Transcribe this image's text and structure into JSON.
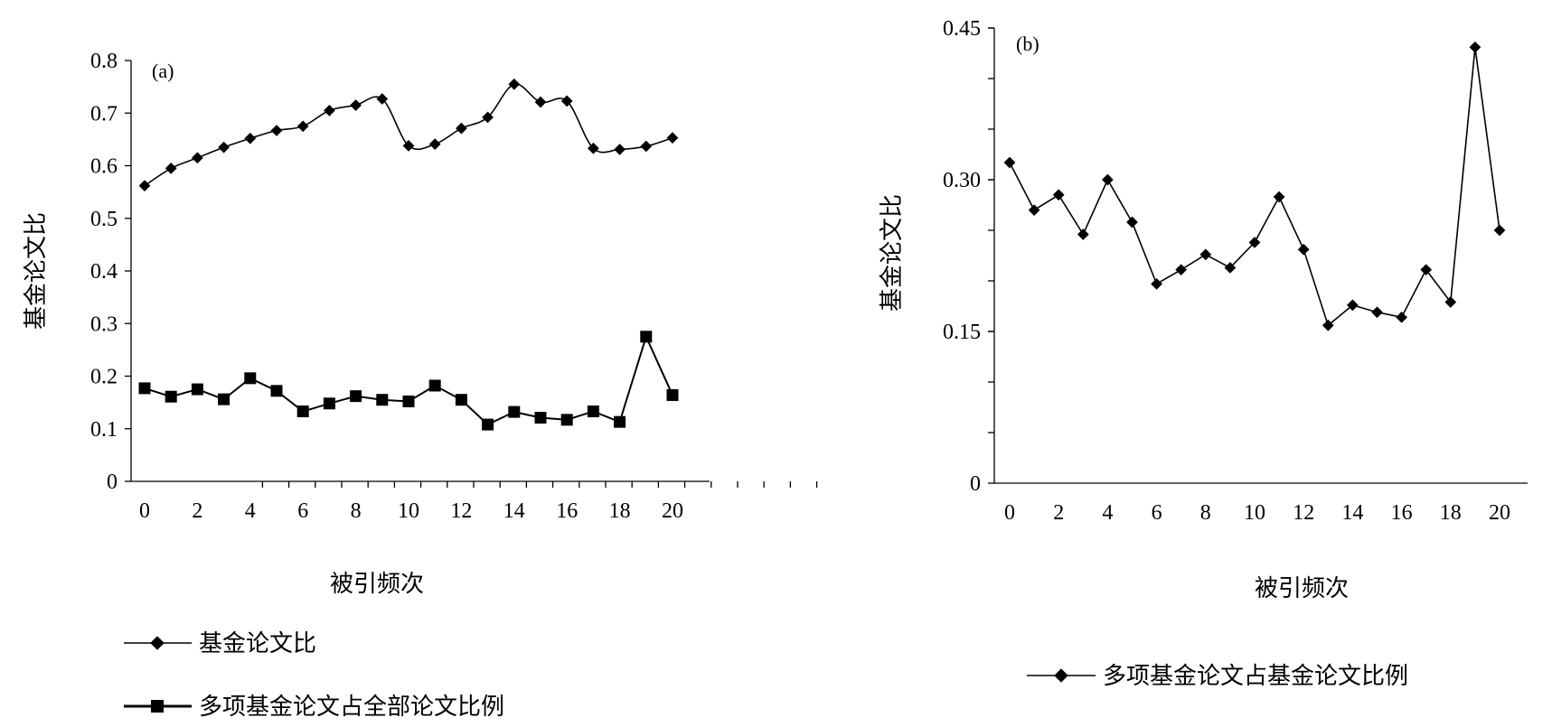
{
  "chart_data": [
    {
      "type": "line",
      "panel_label": "(a)",
      "xlabel": "被引频次",
      "ylabel": "基金论文比",
      "xlim": [
        0,
        20
      ],
      "ylim": [
        0,
        0.8
      ],
      "x_ticks": [
        "0",
        "2",
        "4",
        "6",
        "8",
        "10",
        "12",
        "14",
        "16",
        "18",
        "20"
      ],
      "y_ticks": [
        "0",
        "0.1",
        "0.2",
        "0.3",
        "0.4",
        "0.5",
        "0.6",
        "0.7",
        "0.8"
      ],
      "x": [
        0,
        1,
        2,
        3,
        4,
        5,
        6,
        7,
        8,
        9,
        10,
        11,
        12,
        13,
        14,
        15,
        16,
        17,
        18,
        19,
        20
      ],
      "legend_position": "bottom",
      "series": [
        {
          "name": "基金论文比",
          "marker": "diamond",
          "smooth": true,
          "values": [
            0.562,
            0.595,
            0.615,
            0.635,
            0.652,
            0.667,
            0.675,
            0.705,
            0.715,
            0.727,
            0.638,
            0.641,
            0.671,
            0.692,
            0.755,
            0.721,
            0.723,
            0.633,
            0.631,
            0.637,
            0.653
          ]
        },
        {
          "name": "多项基金论文占全部论文比例",
          "marker": "square",
          "smooth": false,
          "values": [
            0.177,
            0.161,
            0.175,
            0.156,
            0.196,
            0.172,
            0.133,
            0.148,
            0.162,
            0.155,
            0.152,
            0.182,
            0.155,
            0.108,
            0.132,
            0.121,
            0.117,
            0.133,
            0.113,
            0.275,
            0.164
          ]
        }
      ]
    },
    {
      "type": "line",
      "panel_label": "(b)",
      "xlabel": "被引频次",
      "ylabel": "基金论文比",
      "xlim": [
        0,
        20
      ],
      "ylim": [
        0,
        0.45
      ],
      "x_ticks": [
        "0",
        "2",
        "4",
        "6",
        "8",
        "10",
        "12",
        "14",
        "16",
        "18",
        "20"
      ],
      "y_ticks": [
        "0",
        "0.15",
        "0.30",
        "0.45"
      ],
      "x": [
        0,
        1,
        2,
        3,
        4,
        5,
        6,
        7,
        8,
        9,
        10,
        11,
        12,
        13,
        14,
        15,
        16,
        17,
        18,
        19,
        20
      ],
      "legend_position": "bottom",
      "series": [
        {
          "name": "多项基金论文占基金论文比例",
          "marker": "diamond",
          "smooth": false,
          "values": [
            0.317,
            0.27,
            0.285,
            0.246,
            0.3,
            0.258,
            0.197,
            0.211,
            0.226,
            0.213,
            0.238,
            0.283,
            0.231,
            0.156,
            0.176,
            0.169,
            0.164,
            0.211,
            0.179,
            0.431,
            0.25
          ]
        }
      ]
    }
  ]
}
